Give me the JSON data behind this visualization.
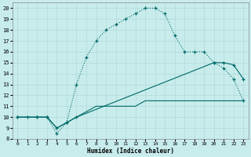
{
  "xlabel": "Humidex (Indice chaleur)",
  "background_color": "#c8ecec",
  "grid_color": "#b0d8d8",
  "line_color": "#006868",
  "xlim": [
    -0.5,
    23.5
  ],
  "ylim": [
    8,
    20.5
  ],
  "xticks": [
    0,
    1,
    2,
    3,
    4,
    5,
    6,
    7,
    8,
    9,
    10,
    11,
    12,
    13,
    14,
    15,
    16,
    17,
    18,
    19,
    20,
    21,
    22,
    23
  ],
  "yticks": [
    8,
    9,
    10,
    11,
    12,
    13,
    14,
    15,
    16,
    17,
    18,
    19,
    20
  ],
  "line1_x": [
    0,
    1,
    2,
    3,
    4,
    5,
    6,
    7,
    8,
    9,
    10,
    11,
    12,
    13,
    14,
    15,
    16,
    17,
    18,
    19,
    20,
    21,
    22,
    23
  ],
  "line1_y": [
    10,
    10,
    10,
    10,
    8.5,
    9.5,
    13,
    15.5,
    17,
    18,
    18.5,
    19,
    19.5,
    20,
    20,
    19.5,
    17.5,
    16,
    16,
    16,
    15,
    14.5,
    13.5,
    11.5
  ],
  "line2_x": [
    0,
    2,
    3,
    4,
    5,
    6,
    20,
    21,
    22,
    23
  ],
  "line2_y": [
    10,
    10,
    10,
    9,
    9.5,
    10,
    15,
    15,
    14.8,
    13.5
  ],
  "line3_x": [
    0,
    2,
    3,
    4,
    5,
    6,
    7,
    8,
    9,
    10,
    11,
    12,
    13,
    14,
    15,
    16,
    17,
    18,
    19,
    20,
    21,
    22,
    23
  ],
  "line3_y": [
    10,
    10,
    10,
    9,
    9.5,
    10,
    10.5,
    11,
    11,
    11,
    11,
    11,
    11.5,
    11.5,
    11.5,
    11.5,
    11.5,
    11.5,
    11.5,
    11.5,
    11.5,
    11.5,
    11.5
  ]
}
